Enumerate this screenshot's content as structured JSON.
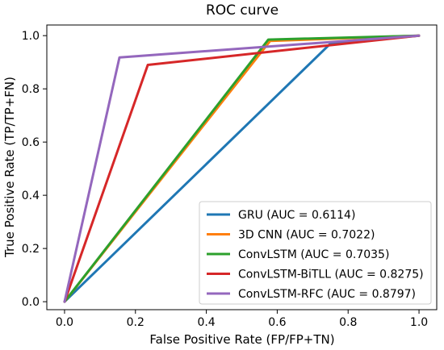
{
  "chart_data": {
    "type": "line",
    "title": "ROC curve",
    "xlabel": "False Positive Rate (FP/FP+TN)",
    "ylabel": "True Positive Rate (TP/TP+FN)",
    "xlim": [
      -0.05,
      1.05
    ],
    "ylim": [
      -0.03,
      1.04
    ],
    "xticks": [
      "0.0",
      "0.2",
      "0.4",
      "0.6",
      "0.8",
      "1.0"
    ],
    "yticks": [
      "0.0",
      "0.2",
      "0.4",
      "0.6",
      "0.8",
      "1.0"
    ],
    "grid": false,
    "legend_position": "lower-right",
    "series": [
      {
        "name": "GRU (AUC = 0.6114)",
        "color": "#1f77b4",
        "x": [
          0.0,
          0.75,
          1.0
        ],
        "y": [
          0.0,
          0.97,
          1.0
        ]
      },
      {
        "name": "3D CNN (AUC = 0.7022)",
        "color": "#ff7f0e",
        "x": [
          0.0,
          0.58,
          1.0
        ],
        "y": [
          0.0,
          0.98,
          1.0
        ]
      },
      {
        "name": "ConvLSTM (AUC = 0.7035)",
        "color": "#2ca02c",
        "x": [
          0.0,
          0.575,
          1.0
        ],
        "y": [
          0.0,
          0.985,
          1.0
        ]
      },
      {
        "name": "ConvLSTM-BiTLL (AUC = 0.8275)",
        "color": "#d62728",
        "x": [
          0.0,
          0.235,
          1.0
        ],
        "y": [
          0.0,
          0.89,
          1.0
        ]
      },
      {
        "name": "ConvLSTM-RFC (AUC = 0.8797)",
        "color": "#9467bd",
        "x": [
          0.0,
          0.155,
          1.0
        ],
        "y": [
          0.0,
          0.918,
          1.0
        ]
      }
    ]
  }
}
